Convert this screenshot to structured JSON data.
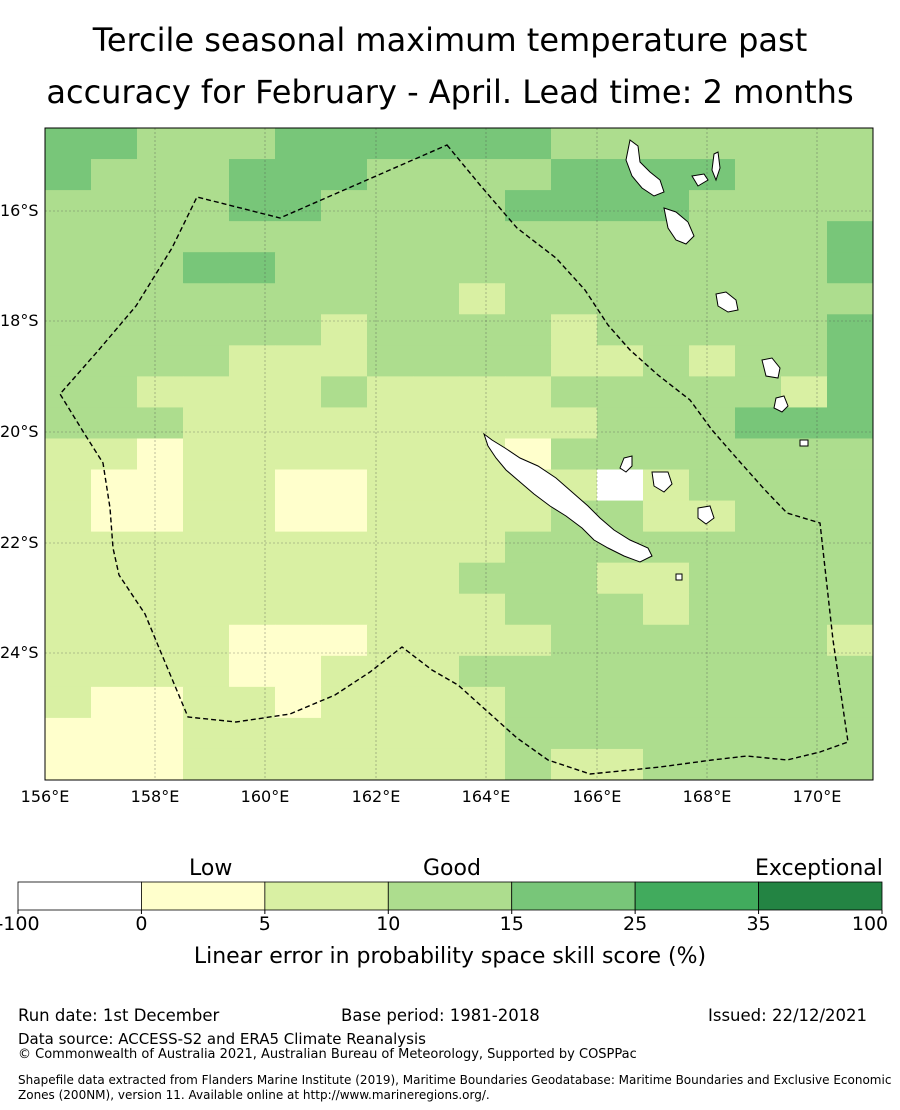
{
  "title": {
    "line1": "Tercile seasonal maximum temperature past",
    "line2": "accuracy for February - April. Lead time: 2 months"
  },
  "map": {
    "lon_range": [
      156,
      171
    ],
    "lat_range": [
      -26.2,
      -14.4
    ],
    "lat_labels": [
      "16°S",
      "18°S",
      "20°S",
      "22°S",
      "24°S"
    ],
    "lon_labels": [
      "156°E",
      "158°E",
      "160°E",
      "162°E",
      "164°E",
      "166°E",
      "168°E",
      "170°E"
    ],
    "grid_cells_note": "Skill category per grid cell drawn from the legend classes",
    "boundary": "Maritime boundary (dashed) of New Caledonia EEZ",
    "islands": [
      "New Caledonia (Grande Terre)",
      "Loyalty Islands",
      "Vanuatu"
    ]
  },
  "colorbar": {
    "categories": [
      "Low",
      "Good",
      "Exceptional"
    ],
    "ticks": [
      "-100",
      "0",
      "5",
      "10",
      "15",
      "25",
      "35",
      "100"
    ],
    "colors": [
      "#ffffff",
      "#ffffcc",
      "#d9f0a3",
      "#addd8e",
      "#78c679",
      "#41ab5d",
      "#238443"
    ],
    "title": "Linear error in probability space skill score (%)"
  },
  "footer": {
    "run_date": "Run date: 1st December",
    "base_period": "Base period: 1981-2018",
    "issued": "Issued: 22/12/2021",
    "data_source": "Data source: ACCESS-S2 and ERA5 Climate Reanalysis",
    "copyright": "© Commonwealth of Australia 2021, Australian Bureau of Meteorology, Supported by COSPPac",
    "shapefile_1": "Shapefile data extracted from Flanders Marine Institute (2019), Maritime Boundaries Geodatabase: Maritime Boundaries and Exclusive Economic",
    "shapefile_2": "Zones (200NM), version 11. Available online at http://www.marineregions.org/."
  }
}
